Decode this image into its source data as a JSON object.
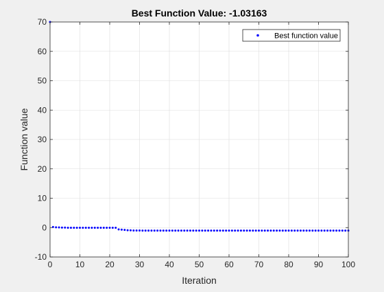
{
  "figure": {
    "background_color": "#f0f0f0",
    "axes_background_color": "#ffffff"
  },
  "chart_data": {
    "type": "scatter",
    "title": "Best Function Value: -1.03163",
    "xlabel": "Iteration",
    "ylabel": "Function value",
    "xlim": [
      0,
      100
    ],
    "ylim": [
      -10,
      70
    ],
    "xticks": [
      0,
      10,
      20,
      30,
      40,
      50,
      60,
      70,
      80,
      90,
      100
    ],
    "yticks": [
      -10,
      0,
      10,
      20,
      30,
      40,
      50,
      60,
      70
    ],
    "grid": true,
    "legend": {
      "location": "top-right",
      "entries": [
        "Best function value"
      ]
    },
    "marker_color": "#0000ff",
    "series": [
      {
        "name": "Best function value",
        "x": [
          0,
          1,
          2,
          3,
          4,
          5,
          6,
          7,
          8,
          9,
          10,
          11,
          12,
          13,
          14,
          15,
          16,
          17,
          18,
          19,
          20,
          21,
          22,
          23,
          24,
          25,
          26,
          27,
          28,
          29,
          30,
          31,
          32,
          33,
          34,
          35,
          36,
          37,
          38,
          39,
          40,
          41,
          42,
          43,
          44,
          45,
          46,
          47,
          48,
          49,
          50,
          51,
          52,
          53,
          54,
          55,
          56,
          57,
          58,
          59,
          60,
          61,
          62,
          63,
          64,
          65,
          66,
          67,
          68,
          69,
          70,
          71,
          72,
          73,
          74,
          75,
          76,
          77,
          78,
          79,
          80,
          81,
          82,
          83,
          84,
          85,
          86,
          87,
          88,
          89,
          90,
          91,
          92,
          93,
          94,
          95,
          96,
          97,
          98,
          99,
          100
        ],
        "y": [
          70,
          0.2,
          0.1,
          0.05,
          0,
          0,
          -0.05,
          -0.05,
          -0.05,
          -0.05,
          -0.05,
          -0.05,
          -0.05,
          -0.05,
          -0.05,
          -0.05,
          -0.05,
          -0.05,
          -0.05,
          -0.05,
          -0.05,
          -0.05,
          -0.05,
          -0.6,
          -0.7,
          -0.8,
          -0.9,
          -0.95,
          -1.0,
          -1.0,
          -1.0,
          -1.02,
          -1.02,
          -1.02,
          -1.02,
          -1.02,
          -1.02,
          -1.02,
          -1.02,
          -1.02,
          -1.02,
          -1.03,
          -1.03,
          -1.03,
          -1.03,
          -1.03,
          -1.03,
          -1.03,
          -1.03,
          -1.03,
          -1.03,
          -1.03,
          -1.03,
          -1.03,
          -1.03,
          -1.03,
          -1.03,
          -1.03,
          -1.03,
          -1.03,
          -1.03,
          -1.03,
          -1.03,
          -1.03,
          -1.03,
          -1.03,
          -1.03,
          -1.03,
          -1.03,
          -1.03,
          -1.03,
          -1.03,
          -1.03,
          -1.03,
          -1.03,
          -1.03,
          -1.03,
          -1.03,
          -1.03,
          -1.03,
          -1.03,
          -1.03,
          -1.03,
          -1.03,
          -1.03,
          -1.03,
          -1.03,
          -1.03,
          -1.03,
          -1.03,
          -1.03,
          -1.03,
          -1.03,
          -1.03,
          -1.03,
          -1.03,
          -1.03,
          -1.03,
          -1.03,
          -1.03,
          -1.03
        ]
      }
    ]
  }
}
